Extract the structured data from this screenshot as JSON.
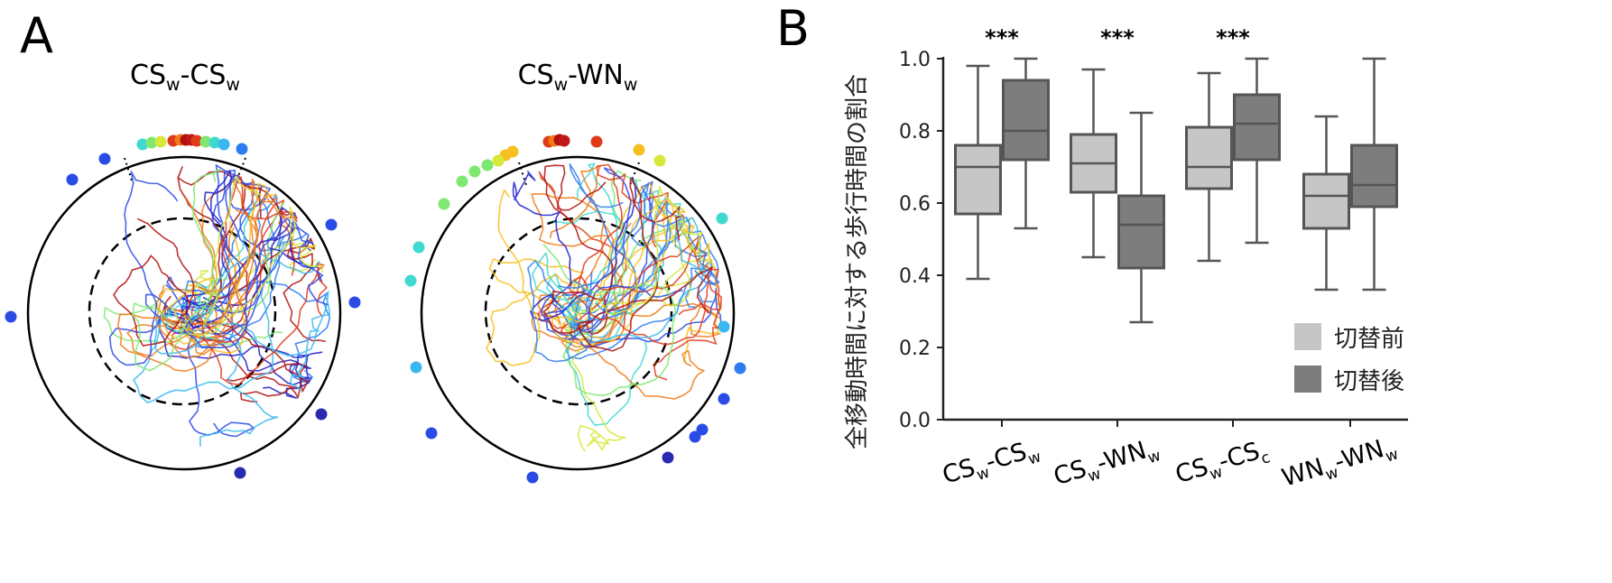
{
  "panel_a": {
    "label": "A",
    "arenas": [
      {
        "title_main1": "CS",
        "title_sub1": "w",
        "title_sep": "-",
        "title_main2": "CS",
        "title_sub2": "w"
      },
      {
        "title_main1": "CS",
        "title_sub1": "w",
        "title_sep": "-",
        "title_main2": "WN",
        "title_sub2": "w"
      }
    ]
  },
  "panel_b": {
    "label": "B"
  },
  "chart_data": {
    "type": "box",
    "ylabel": "全移動時間に対する歩行時間の割合",
    "ylim": [
      0.0,
      1.0
    ],
    "yticks": [
      "0.0",
      "0.2",
      "0.4",
      "0.6",
      "0.8",
      "1.0"
    ],
    "categories": [
      {
        "main1": "CS",
        "sub1": "w",
        "sep": "-",
        "main2": "CS",
        "sub2": "w",
        "significance": "***"
      },
      {
        "main1": "CS",
        "sub1": "w",
        "sep": "-",
        "main2": "WN",
        "sub2": "w",
        "significance": "***"
      },
      {
        "main1": "CS",
        "sub1": "w",
        "sep": "-",
        "main2": "CS",
        "sub2": "c",
        "significance": "***"
      },
      {
        "main1": "WN",
        "sub1": "w",
        "sep": "-",
        "main2": "WN",
        "sub2": "w",
        "significance": ""
      }
    ],
    "series": [
      {
        "name": "切替前",
        "color": "#c6c6c6",
        "boxes": [
          {
            "min": 0.39,
            "q1": 0.57,
            "median": 0.7,
            "q3": 0.76,
            "max": 0.98
          },
          {
            "min": 0.45,
            "q1": 0.63,
            "median": 0.71,
            "q3": 0.79,
            "max": 0.97
          },
          {
            "min": 0.44,
            "q1": 0.64,
            "median": 0.7,
            "q3": 0.81,
            "max": 0.96
          },
          {
            "min": 0.36,
            "q1": 0.53,
            "median": 0.62,
            "q3": 0.68,
            "max": 0.84
          }
        ]
      },
      {
        "name": "切替後",
        "color": "#7d7d7d",
        "boxes": [
          {
            "min": 0.53,
            "q1": 0.72,
            "median": 0.8,
            "q3": 0.94,
            "max": 1.0
          },
          {
            "min": 0.27,
            "q1": 0.42,
            "median": 0.54,
            "q3": 0.62,
            "max": 0.85
          },
          {
            "min": 0.49,
            "q1": 0.72,
            "median": 0.82,
            "q3": 0.9,
            "max": 1.0
          },
          {
            "min": 0.36,
            "q1": 0.59,
            "median": 0.65,
            "q3": 0.76,
            "max": 1.0
          }
        ]
      }
    ],
    "legend_position": "bottom-right"
  }
}
